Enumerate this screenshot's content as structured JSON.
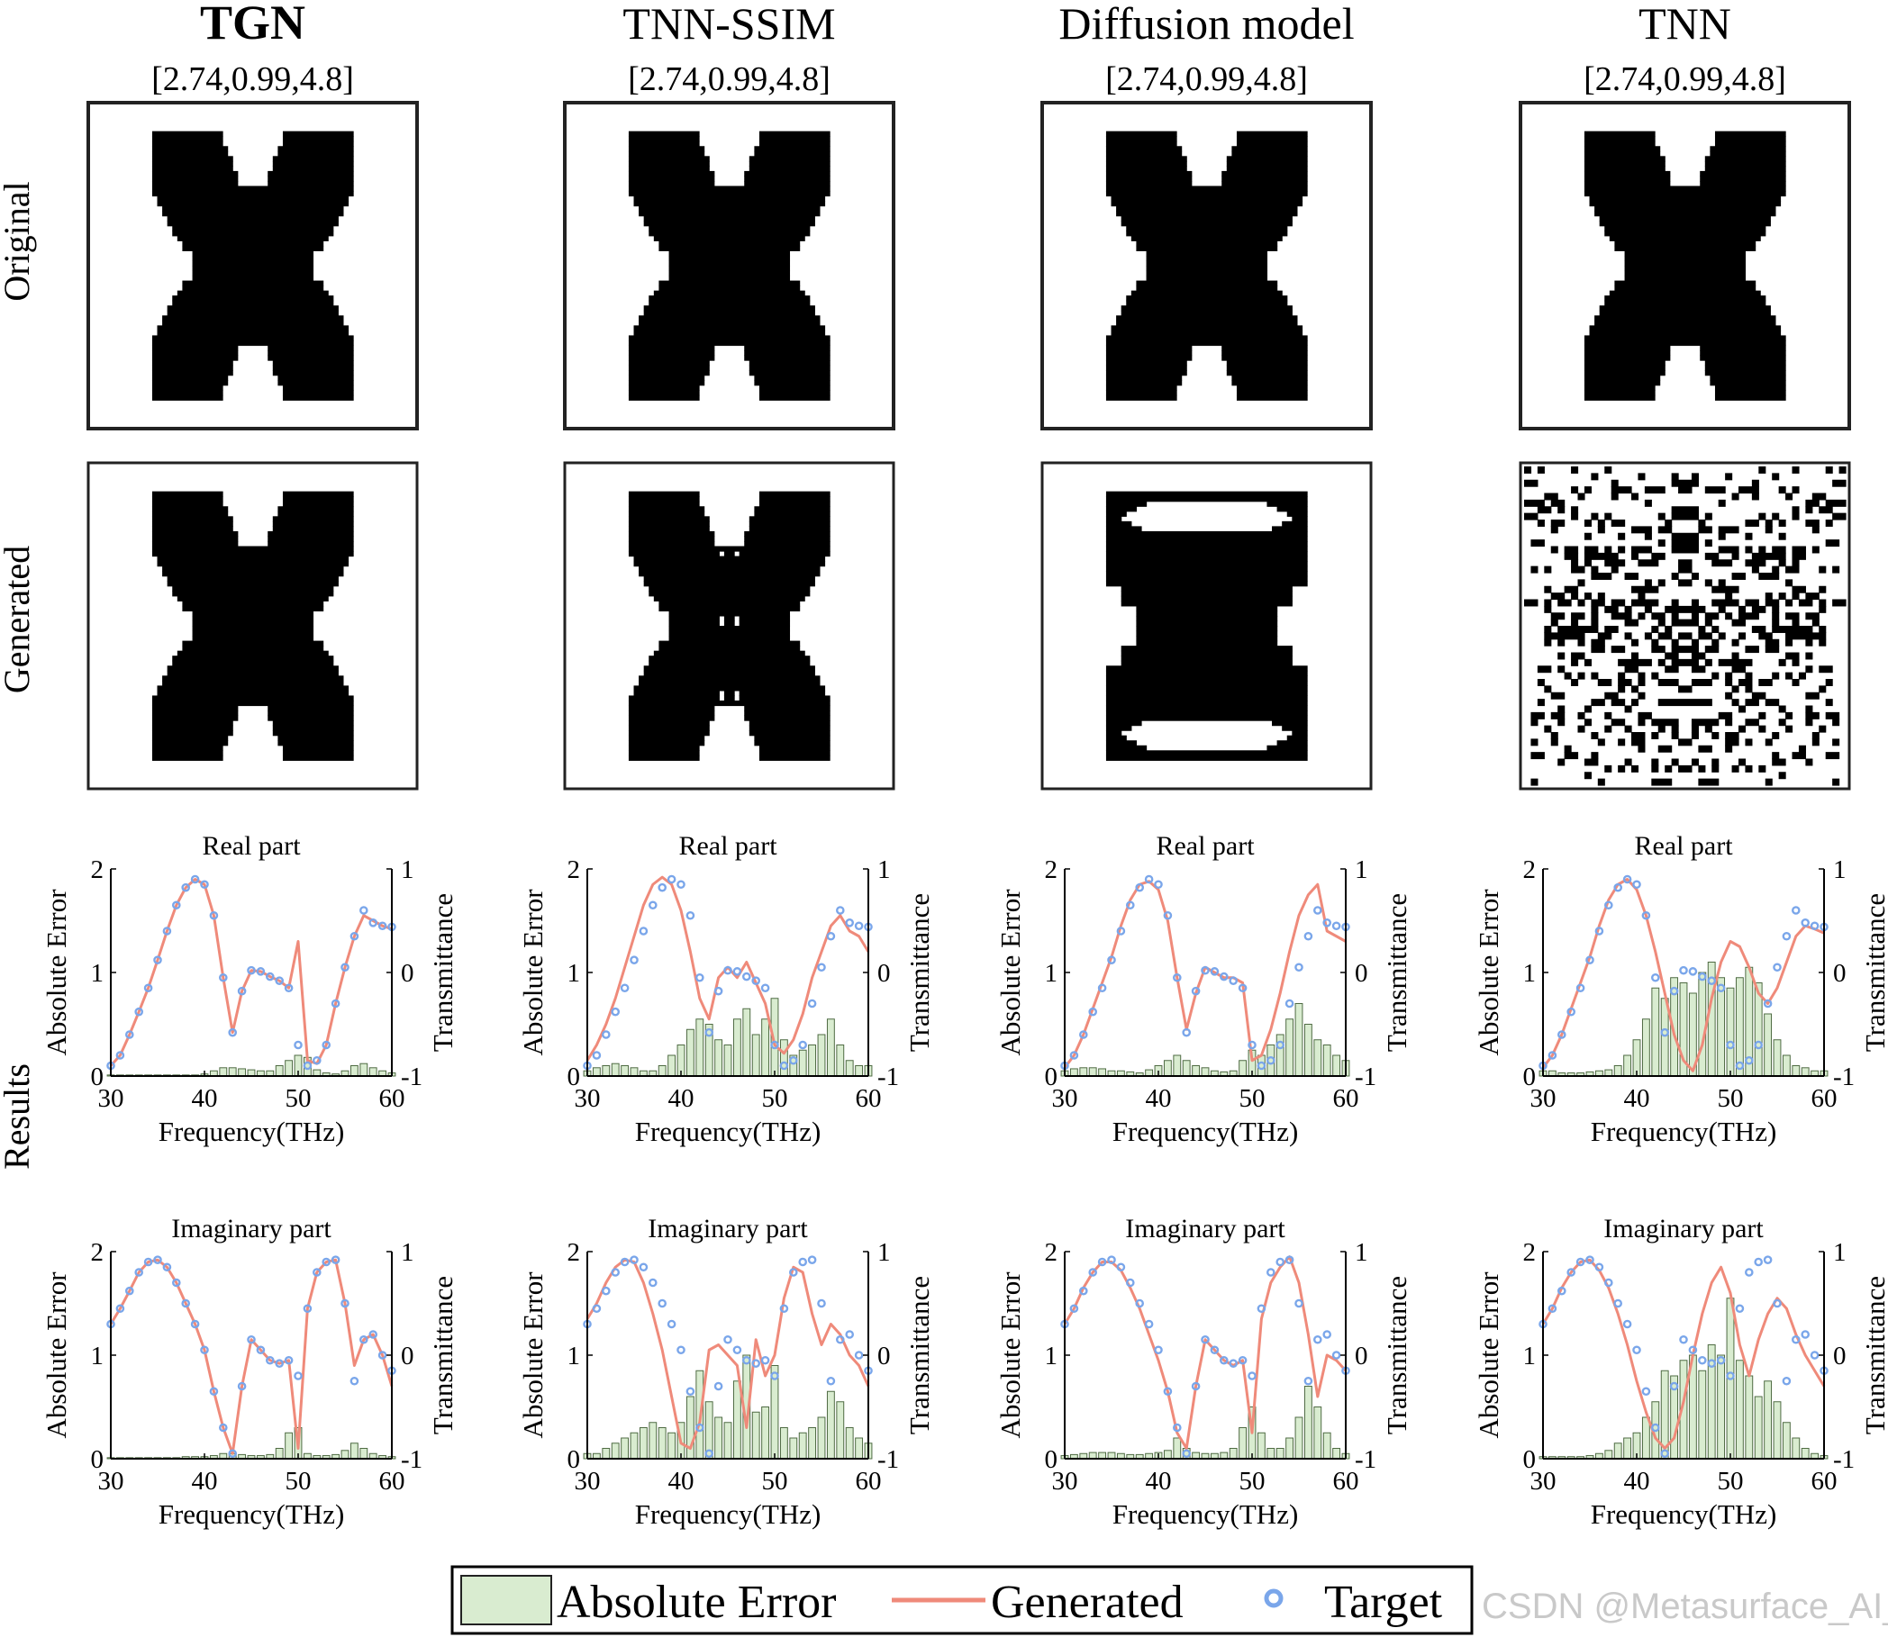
{
  "figure": {
    "row_labels": [
      "Original",
      "Generated",
      "Results"
    ],
    "legend": {
      "absolute_error": "Absolute Error",
      "generated": "Generated",
      "target": "Target"
    },
    "colors": {
      "bar_fill": "#d9ecd0",
      "bar_stroke": "#4f6b43",
      "generated_line": "#ef8a7a",
      "target_marker": "#7aa6ea"
    },
    "watermark": "CSDN @Metasurface_AI_"
  },
  "columns": [
    {
      "title": "TGN",
      "title_bold": true,
      "params": "[2.74,0.99,4.8]",
      "generated_pattern": "x-shape"
    },
    {
      "title": "TNN-SSIM",
      "title_bold": false,
      "params": "[2.74,0.99,4.8]",
      "generated_pattern": "x-shape-holes"
    },
    {
      "title": "Diffusion model",
      "title_bold": false,
      "params": "[2.74,0.99,4.8]",
      "generated_pattern": "rect-notched"
    },
    {
      "title": "TNN",
      "title_bold": false,
      "params": "[2.74,0.99,4.8]",
      "generated_pattern": "noise"
    }
  ],
  "chart_data": {
    "type": "bar",
    "panels": [
      {
        "title": "Real part",
        "xlabel": "Frequency(THz)",
        "ylabel_left": "Absolute Error",
        "ylabel_right": "Transmittance",
        "xlim": [
          30,
          60
        ],
        "ylim_left": [
          0,
          2
        ],
        "ylim_right": [
          -1,
          1
        ],
        "xticks": [
          "30",
          "40",
          "50",
          "60"
        ],
        "yticks_left": [
          "0",
          "1",
          "2"
        ],
        "yticks_right": [
          "-1",
          "0",
          "1"
        ]
      },
      {
        "title": "Imaginary part",
        "xlabel": "Frequency(THz)",
        "ylabel_left": "Absolute Error",
        "ylabel_right": "Transmittance",
        "xlim": [
          30,
          60
        ],
        "ylim_left": [
          0,
          2
        ],
        "ylim_right": [
          -1,
          1
        ],
        "xticks": [
          "30",
          "40",
          "50",
          "60"
        ],
        "yticks_left": [
          "0",
          "1",
          "2"
        ],
        "yticks_right": [
          "-1",
          "0",
          "1"
        ]
      }
    ],
    "target": {
      "real": {
        "x": [
          30,
          31,
          32,
          33,
          34,
          35,
          36,
          37,
          38,
          39,
          40,
          41,
          42,
          43,
          44,
          45,
          46,
          47,
          48,
          49,
          50,
          51,
          52,
          53,
          54,
          55,
          56,
          57,
          58,
          59,
          60
        ],
        "y": [
          -0.9,
          -0.8,
          -0.6,
          -0.38,
          -0.15,
          0.12,
          0.4,
          0.65,
          0.82,
          0.9,
          0.85,
          0.55,
          -0.05,
          -0.58,
          -0.18,
          0.02,
          0.01,
          -0.04,
          -0.08,
          -0.15,
          -0.7,
          -0.9,
          -0.85,
          -0.7,
          -0.3,
          0.05,
          0.35,
          0.6,
          0.48,
          0.45,
          0.44
        ]
      },
      "imag": {
        "x": [
          30,
          31,
          32,
          33,
          34,
          35,
          36,
          37,
          38,
          39,
          40,
          41,
          42,
          43,
          44,
          45,
          46,
          47,
          48,
          49,
          50,
          51,
          52,
          53,
          54,
          55,
          56,
          57,
          58,
          59,
          60
        ],
        "y": [
          0.3,
          0.45,
          0.62,
          0.8,
          0.9,
          0.92,
          0.85,
          0.7,
          0.5,
          0.3,
          0.05,
          -0.35,
          -0.7,
          -0.95,
          -0.3,
          0.15,
          0.05,
          -0.05,
          -0.08,
          -0.05,
          -0.2,
          0.45,
          0.8,
          0.9,
          0.92,
          0.5,
          -0.25,
          0.15,
          0.2,
          0.0,
          -0.15
        ]
      }
    },
    "methods": [
      {
        "name": "TGN",
        "real": {
          "generated": [
            -0.9,
            -0.8,
            -0.6,
            -0.38,
            -0.15,
            0.12,
            0.4,
            0.65,
            0.82,
            0.9,
            0.85,
            0.55,
            -0.05,
            -0.58,
            -0.18,
            0.02,
            0.01,
            -0.04,
            -0.08,
            -0.15,
            0.3,
            -0.85,
            -0.88,
            -0.7,
            -0.3,
            0.05,
            0.35,
            0.55,
            0.5,
            0.45,
            0.42
          ],
          "abs_error": [
            0.01,
            0.01,
            0.01,
            0.01,
            0.01,
            0.01,
            0.01,
            0.01,
            0.01,
            0.01,
            0.02,
            0.05,
            0.08,
            0.08,
            0.07,
            0.06,
            0.05,
            0.05,
            0.1,
            0.15,
            0.2,
            0.18,
            0.06,
            0.03,
            0.02,
            0.05,
            0.1,
            0.12,
            0.08,
            0.05,
            0.03
          ]
        },
        "imag": {
          "generated": [
            0.3,
            0.45,
            0.62,
            0.8,
            0.9,
            0.92,
            0.85,
            0.7,
            0.5,
            0.3,
            0.05,
            -0.35,
            -0.7,
            -0.95,
            -0.3,
            0.15,
            0.05,
            -0.05,
            -0.08,
            -0.05,
            -0.9,
            0.45,
            0.8,
            0.9,
            0.92,
            0.5,
            -0.1,
            0.15,
            0.2,
            0.0,
            -0.3
          ],
          "abs_error": [
            0.01,
            0.01,
            0.01,
            0.01,
            0.01,
            0.01,
            0.01,
            0.01,
            0.02,
            0.02,
            0.02,
            0.03,
            0.05,
            0.05,
            0.04,
            0.03,
            0.03,
            0.04,
            0.1,
            0.25,
            0.3,
            0.05,
            0.03,
            0.03,
            0.04,
            0.08,
            0.15,
            0.1,
            0.05,
            0.03,
            0.02
          ]
        }
      },
      {
        "name": "TNN-SSIM",
        "real": {
          "generated": [
            -0.85,
            -0.7,
            -0.5,
            -0.25,
            0.05,
            0.35,
            0.65,
            0.85,
            0.92,
            0.85,
            0.6,
            0.2,
            -0.25,
            -0.45,
            -0.05,
            0.05,
            -0.05,
            0.1,
            -0.1,
            -0.3,
            -0.7,
            -0.78,
            -0.65,
            -0.4,
            -0.05,
            0.2,
            0.45,
            0.55,
            0.4,
            0.35,
            0.2
          ],
          "abs_error": [
            0.05,
            0.08,
            0.1,
            0.12,
            0.1,
            0.08,
            0.05,
            0.05,
            0.1,
            0.2,
            0.3,
            0.45,
            0.55,
            0.5,
            0.35,
            0.3,
            0.55,
            0.65,
            0.4,
            0.55,
            0.75,
            0.35,
            0.2,
            0.25,
            0.3,
            0.4,
            0.55,
            0.3,
            0.15,
            0.1,
            0.1
          ]
        },
        "imag": {
          "generated": [
            0.35,
            0.5,
            0.7,
            0.85,
            0.92,
            0.9,
            0.7,
            0.4,
            0.05,
            -0.4,
            -0.85,
            -0.9,
            -0.65,
            0.05,
            0.1,
            0.0,
            -0.1,
            -0.7,
            0.15,
            -0.2,
            0.0,
            0.55,
            0.85,
            0.8,
            0.4,
            0.1,
            0.3,
            0.2,
            0.0,
            -0.1,
            -0.3
          ],
          "abs_error": [
            0.05,
            0.05,
            0.1,
            0.15,
            0.2,
            0.25,
            0.3,
            0.35,
            0.3,
            0.25,
            0.35,
            0.6,
            0.85,
            0.55,
            0.4,
            0.35,
            0.75,
            1.0,
            0.45,
            0.5,
            0.9,
            0.3,
            0.2,
            0.25,
            0.3,
            0.4,
            0.65,
            0.55,
            0.3,
            0.2,
            0.15
          ]
        }
      },
      {
        "name": "Diffusion model",
        "real": {
          "generated": [
            -0.92,
            -0.8,
            -0.6,
            -0.35,
            -0.1,
            0.15,
            0.45,
            0.7,
            0.85,
            0.88,
            0.8,
            0.5,
            -0.05,
            -0.55,
            -0.2,
            0.05,
            0.0,
            -0.05,
            -0.05,
            -0.1,
            -0.85,
            -0.8,
            -0.55,
            -0.2,
            0.2,
            0.55,
            0.75,
            0.85,
            0.4,
            0.35,
            0.3
          ],
          "abs_error": [
            0.05,
            0.07,
            0.08,
            0.08,
            0.07,
            0.05,
            0.05,
            0.04,
            0.03,
            0.06,
            0.1,
            0.15,
            0.2,
            0.15,
            0.1,
            0.08,
            0.05,
            0.04,
            0.05,
            0.15,
            0.25,
            0.2,
            0.3,
            0.4,
            0.55,
            0.7,
            0.5,
            0.35,
            0.3,
            0.2,
            0.15
          ]
        },
        "imag": {
          "generated": [
            0.3,
            0.45,
            0.65,
            0.8,
            0.9,
            0.9,
            0.82,
            0.65,
            0.45,
            0.2,
            -0.05,
            -0.35,
            -0.75,
            -0.9,
            -0.3,
            0.15,
            0.05,
            -0.05,
            -0.1,
            -0.05,
            -0.75,
            0.35,
            0.7,
            0.85,
            0.95,
            0.7,
            0.2,
            -0.4,
            0.0,
            -0.05,
            -0.15
          ],
          "abs_error": [
            0.03,
            0.04,
            0.05,
            0.06,
            0.06,
            0.06,
            0.05,
            0.04,
            0.04,
            0.05,
            0.06,
            0.08,
            0.2,
            0.1,
            0.06,
            0.05,
            0.05,
            0.06,
            0.1,
            0.3,
            0.5,
            0.25,
            0.1,
            0.1,
            0.2,
            0.4,
            0.7,
            0.5,
            0.25,
            0.1,
            0.05
          ]
        }
      },
      {
        "name": "TNN",
        "real": {
          "generated": [
            -0.92,
            -0.8,
            -0.6,
            -0.35,
            -0.1,
            0.15,
            0.45,
            0.7,
            0.85,
            0.9,
            0.8,
            0.55,
            0.2,
            -0.2,
            -0.6,
            -0.85,
            -0.95,
            -0.7,
            -0.25,
            0.1,
            0.3,
            0.25,
            0.05,
            -0.2,
            -0.3,
            -0.15,
            0.1,
            0.35,
            0.45,
            0.42,
            0.38
          ],
          "abs_error": [
            0.05,
            0.05,
            0.03,
            0.03,
            0.03,
            0.04,
            0.05,
            0.06,
            0.1,
            0.2,
            0.35,
            0.55,
            0.85,
            0.75,
            0.95,
            0.9,
            0.8,
            1.0,
            1.1,
            0.95,
            0.85,
            0.95,
            1.05,
            0.9,
            0.6,
            0.35,
            0.2,
            0.1,
            0.08,
            0.05,
            0.05
          ]
        },
        "imag": {
          "generated": [
            0.3,
            0.45,
            0.65,
            0.8,
            0.9,
            0.92,
            0.82,
            0.65,
            0.4,
            0.1,
            -0.25,
            -0.55,
            -0.8,
            -0.9,
            -0.8,
            -0.45,
            0.0,
            0.4,
            0.7,
            0.85,
            0.6,
            0.1,
            -0.2,
            0.15,
            0.4,
            0.55,
            0.45,
            0.2,
            0.0,
            -0.15,
            -0.3
          ],
          "abs_error": [
            0.02,
            0.02,
            0.02,
            0.02,
            0.02,
            0.03,
            0.05,
            0.08,
            0.15,
            0.2,
            0.25,
            0.4,
            0.55,
            0.85,
            0.8,
            0.95,
            1.0,
            0.85,
            1.1,
            1.0,
            1.55,
            0.95,
            0.8,
            0.6,
            0.75,
            0.55,
            0.35,
            0.2,
            0.1,
            0.05,
            0.03
          ]
        }
      }
    ]
  }
}
